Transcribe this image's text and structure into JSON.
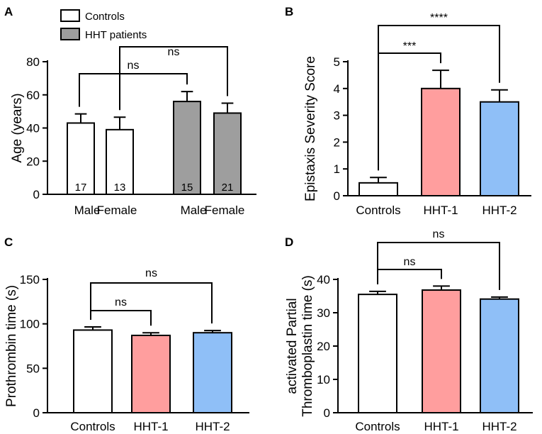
{
  "chart_data": [
    {
      "panel": "A",
      "type": "bar",
      "ylabel": "Age (years)",
      "ylim": [
        0,
        80
      ],
      "yticks": [
        0,
        20,
        40,
        60,
        80
      ],
      "categories": [
        "Male",
        "Female",
        "Male",
        "Female"
      ],
      "groups": [
        "Controls",
        "Controls",
        "HHT patients",
        "HHT patients"
      ],
      "values": [
        43,
        39,
        56,
        49
      ],
      "errors": [
        5.5,
        7.5,
        6,
        6
      ],
      "n_labels": [
        "17",
        "13",
        "15",
        "21"
      ],
      "colors": [
        "#ffffff",
        "#ffffff",
        "#9e9e9e",
        "#9e9e9e"
      ],
      "legend": [
        {
          "label": "Controls",
          "color": "#ffffff"
        },
        {
          "label": "HHT patients",
          "color": "#9e9e9e"
        }
      ],
      "comparisons": [
        {
          "from": 0,
          "to": 2,
          "label": "ns"
        },
        {
          "from": 1,
          "to": 3,
          "label": "ns"
        }
      ]
    },
    {
      "panel": "B",
      "type": "bar",
      "ylabel": "Epistaxis Severity  Score",
      "ylim": [
        0,
        5
      ],
      "yticks": [
        0,
        1,
        2,
        3,
        4,
        5
      ],
      "categories": [
        "Controls",
        "HHT-1",
        "HHT-2"
      ],
      "values": [
        0.48,
        4.0,
        3.5
      ],
      "errors": [
        0.2,
        0.68,
        0.45
      ],
      "colors": [
        "#ffffff",
        "#ff9e9e",
        "#8fbff7"
      ],
      "comparisons": [
        {
          "from": 0,
          "to": 1,
          "label": "***"
        },
        {
          "from": 0,
          "to": 2,
          "label": "****"
        }
      ]
    },
    {
      "panel": "C",
      "type": "bar",
      "ylabel": "Prothrombin time (s)",
      "ylim": [
        0,
        150
      ],
      "yticks": [
        0,
        50,
        100,
        150
      ],
      "categories": [
        "Controls",
        "HHT-1",
        "HHT-2"
      ],
      "values": [
        93,
        87,
        90
      ],
      "errors": [
        3.5,
        3,
        2.5
      ],
      "colors": [
        "#ffffff",
        "#ff9e9e",
        "#8fbff7"
      ],
      "comparisons": [
        {
          "from": 0,
          "to": 1,
          "label": "ns"
        },
        {
          "from": 0,
          "to": 2,
          "label": "ns"
        }
      ]
    },
    {
      "panel": "D",
      "type": "bar",
      "ylabel": "activated Partial Thromboplastin time (s)",
      "ylabel_lines": [
        "activated Partial",
        "Thromboplastin time (s)"
      ],
      "ylim": [
        0,
        40
      ],
      "yticks": [
        0,
        10,
        20,
        30,
        40
      ],
      "categories": [
        "Controls",
        "HHT-1",
        "HHT-2"
      ],
      "values": [
        35.5,
        36.8,
        34.1
      ],
      "errors": [
        0.9,
        1.2,
        0.6
      ],
      "colors": [
        "#ffffff",
        "#ff9e9e",
        "#8fbff7"
      ],
      "comparisons": [
        {
          "from": 0,
          "to": 1,
          "label": "ns"
        },
        {
          "from": 0,
          "to": 2,
          "label": "ns"
        }
      ]
    }
  ]
}
